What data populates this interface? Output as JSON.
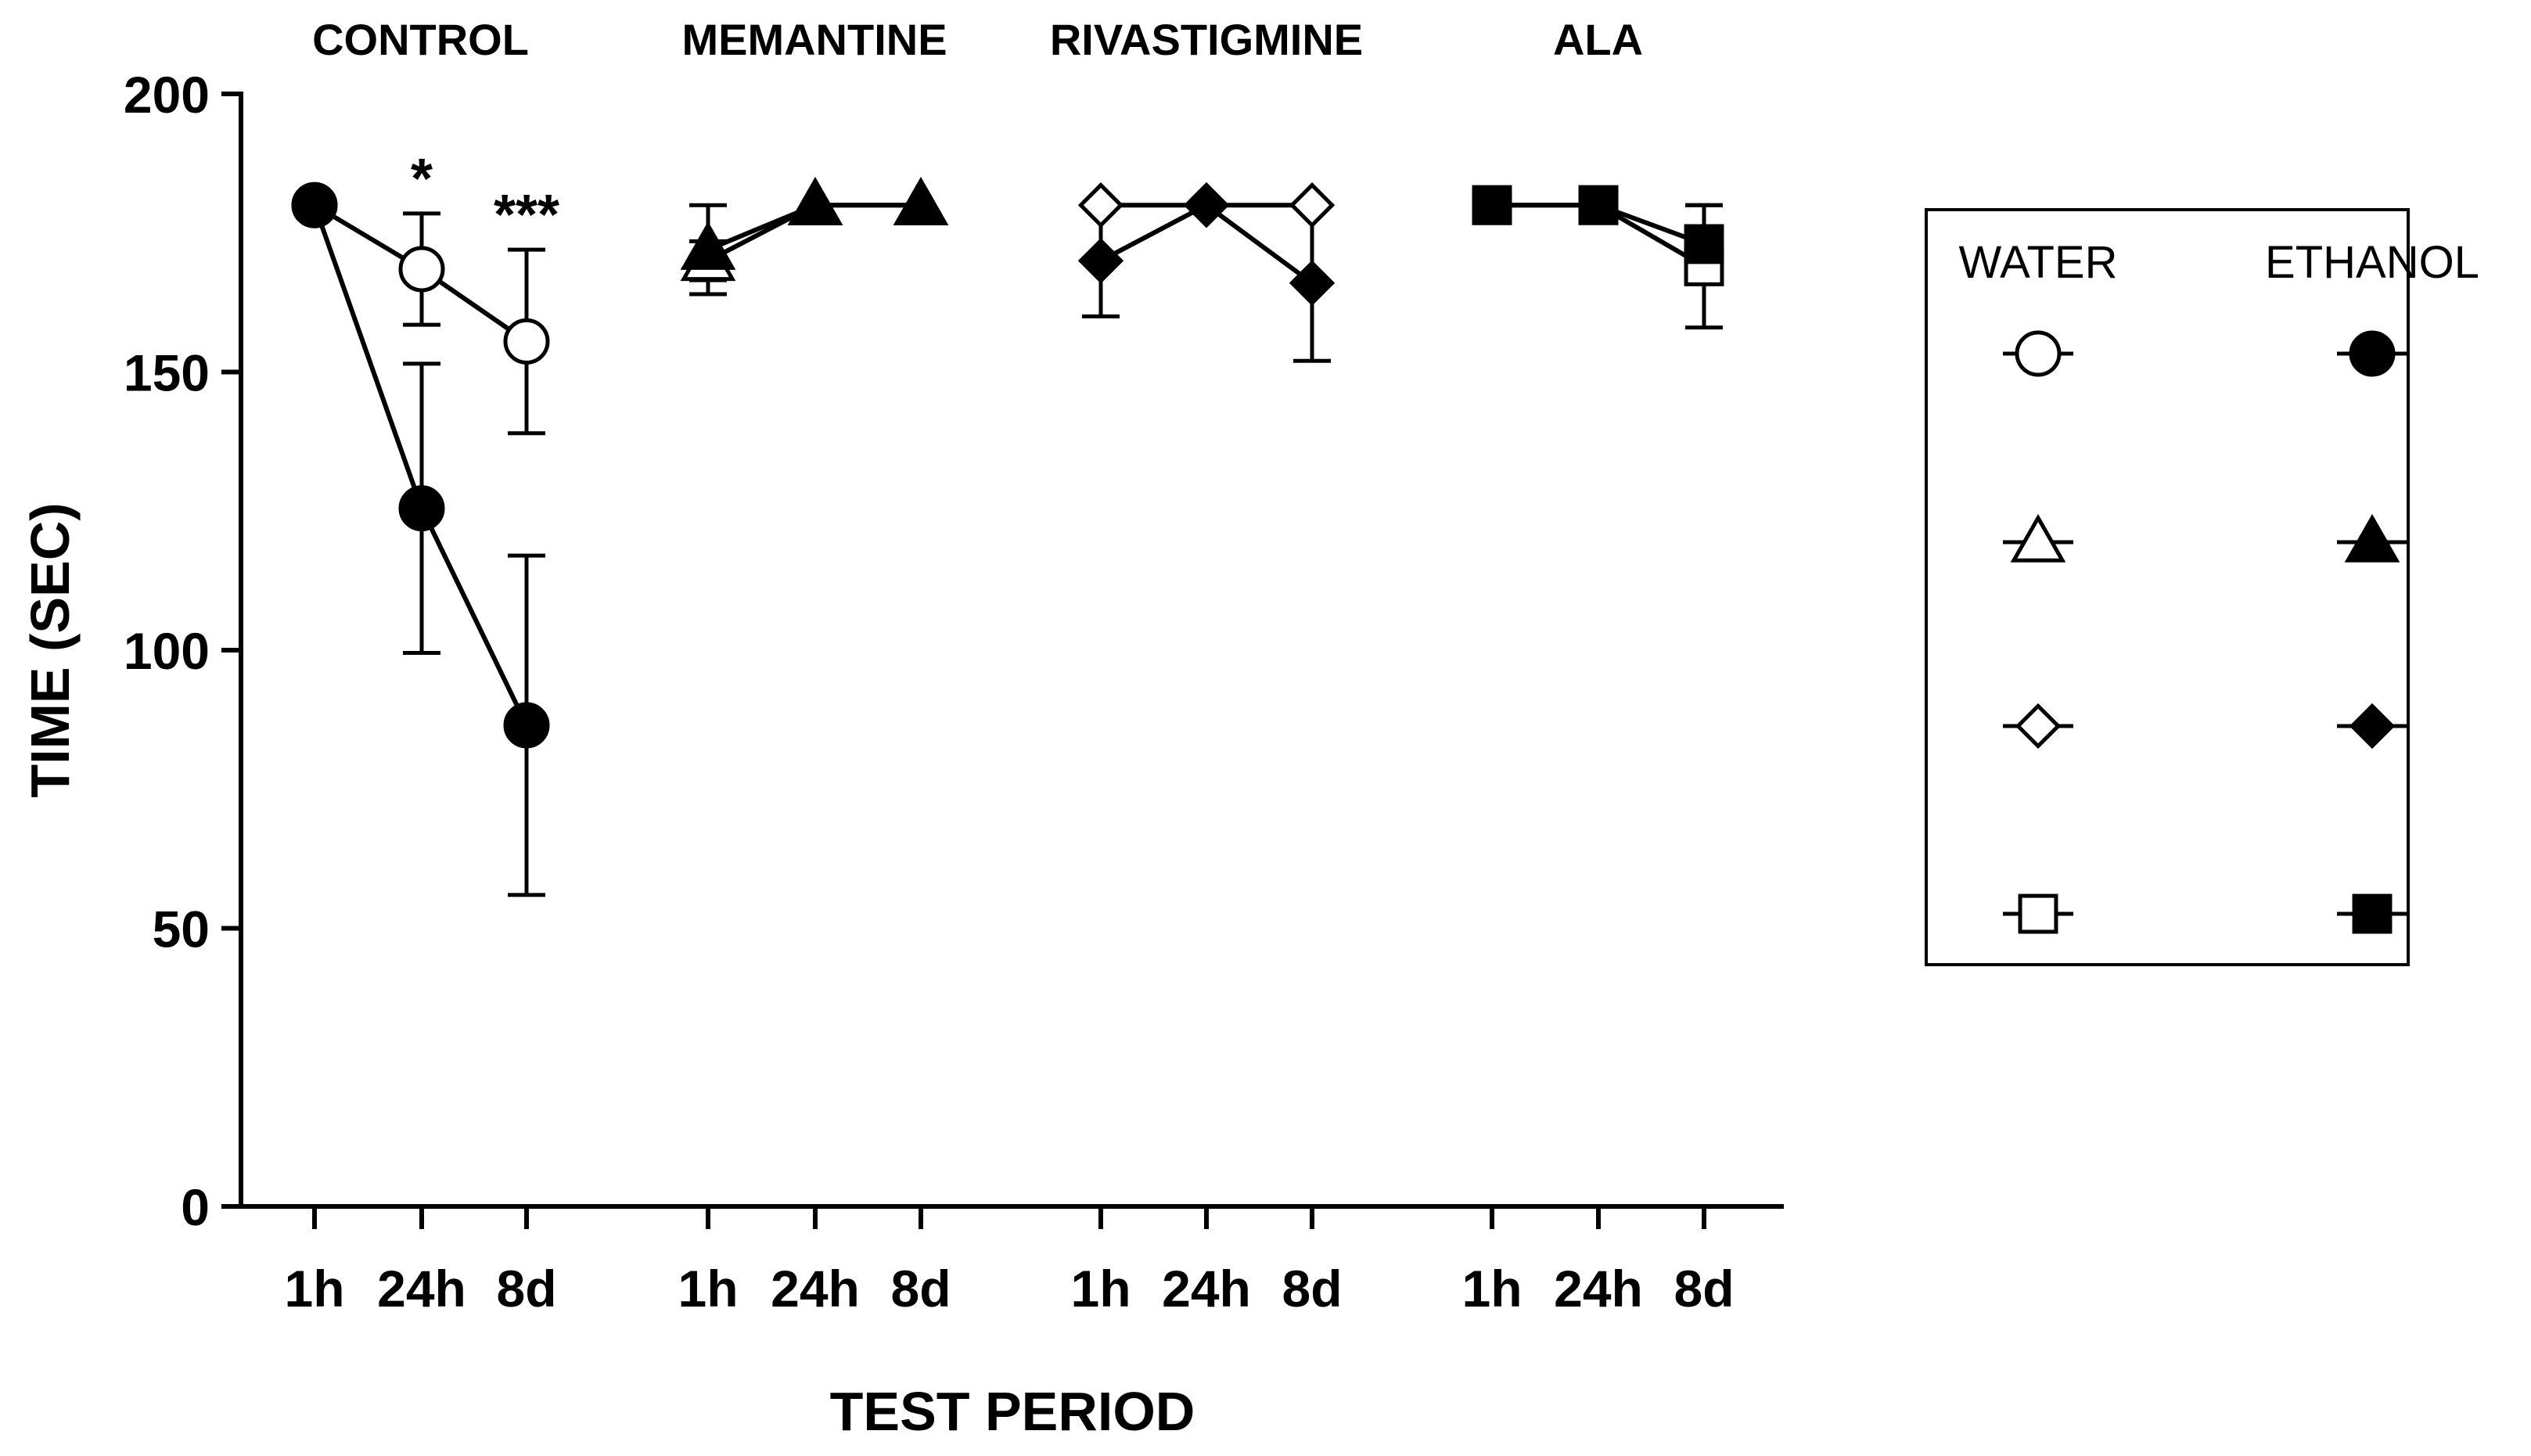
{
  "chart_data": {
    "type": "line",
    "ylabel": "TIME (SEC)",
    "xlabel": "TEST PERIOD",
    "ylim": [
      0,
      200
    ],
    "yticks": [
      0,
      50,
      100,
      150,
      200
    ],
    "xtick_labels": [
      "1h",
      "24h",
      "8d"
    ],
    "groups": [
      {
        "name": "CONTROL",
        "symbol": "circle",
        "water": {
          "values": [
            180,
            168.5,
            155.5
          ],
          "errors": [
            0,
            10,
            16.5
          ]
        },
        "ethanol": {
          "values": [
            180,
            125.5,
            86.5
          ],
          "errors": [
            0,
            26,
            30.5
          ]
        },
        "annotations": [
          "",
          "*",
          "***"
        ]
      },
      {
        "name": "MEMANTINE",
        "symbol": "triangle",
        "water": {
          "values": [
            170,
            180,
            180
          ],
          "errors": [
            3.5,
            0,
            0
          ]
        },
        "ethanol": {
          "values": [
            172,
            180,
            180
          ],
          "errors": [
            8,
            0,
            0
          ]
        },
        "annotations": [
          "",
          "",
          ""
        ]
      },
      {
        "name": "RIVASTIGMINE",
        "symbol": "diamond",
        "water": {
          "values": [
            180,
            180,
            180
          ],
          "errors": [
            0,
            0,
            0
          ]
        },
        "ethanol": {
          "values": [
            170,
            180,
            166
          ],
          "errors": [
            10,
            0,
            14
          ]
        },
        "annotations": [
          "",
          "",
          ""
        ]
      },
      {
        "name": "ALA",
        "symbol": "square",
        "water": {
          "values": [
            180,
            180,
            169
          ],
          "errors": [
            0,
            0,
            11
          ]
        },
        "ethanol": {
          "values": [
            180,
            180,
            173
          ],
          "errors": [
            0,
            0,
            7
          ]
        },
        "annotations": [
          "",
          "",
          ""
        ]
      }
    ],
    "legend": {
      "position": "right",
      "columns": [
        "WATER",
        "ETHANOL"
      ],
      "water_fill": "#ffffff",
      "ethanol_fill": "#000000"
    }
  }
}
